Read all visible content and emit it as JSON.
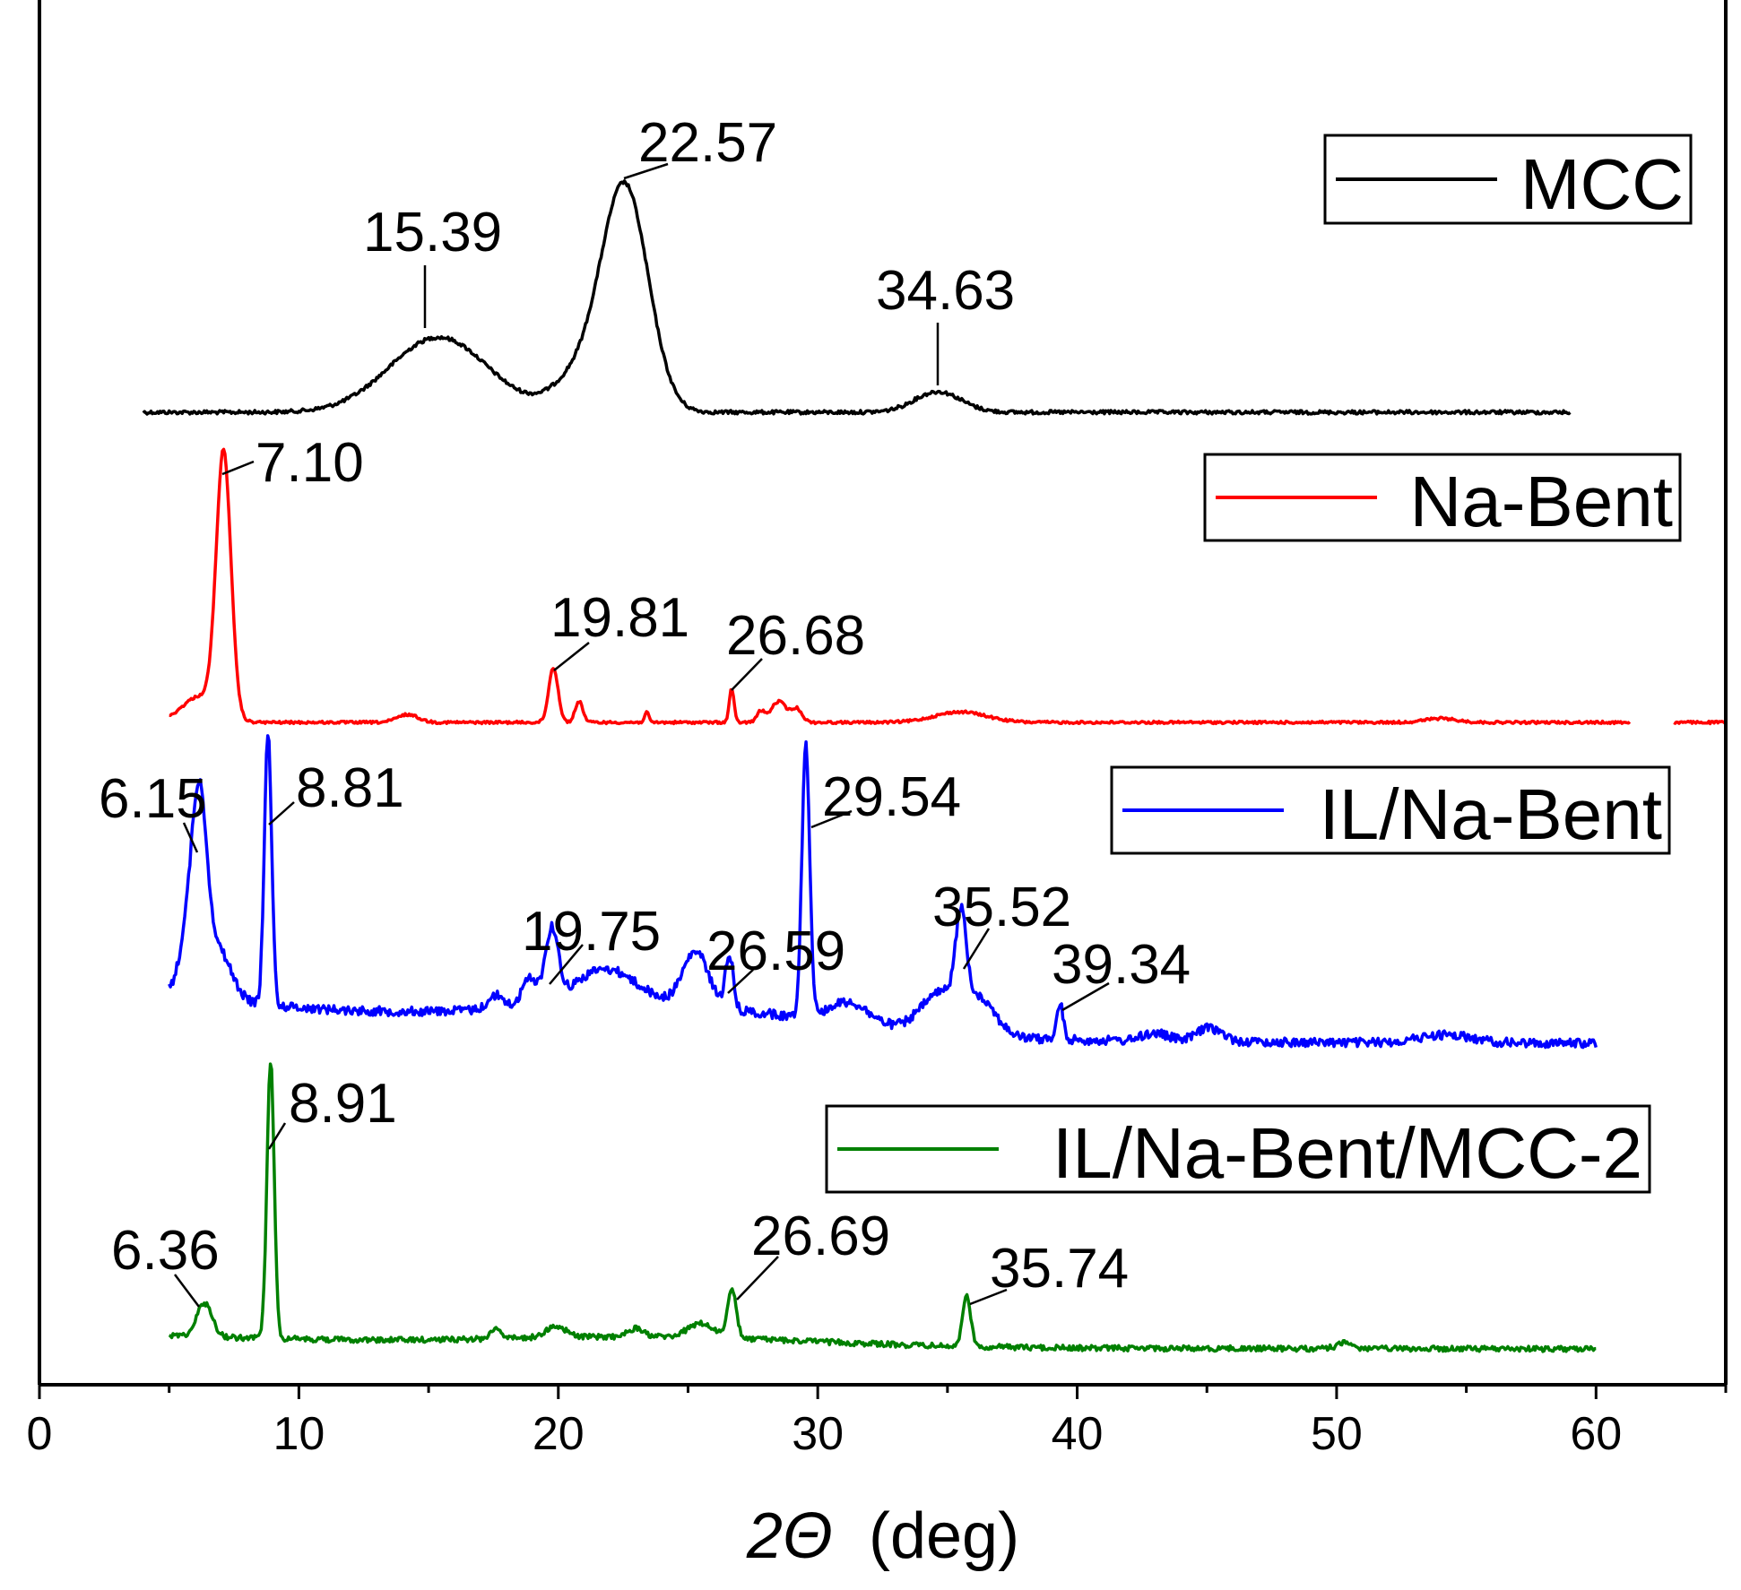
{
  "chart_data": {
    "type": "line",
    "title": "",
    "xlabel": "2Θ (deg)",
    "xlabel_parts": {
      "symbol": "2Θ",
      "unit": "(deg)"
    },
    "ylabel": "",
    "xlim": [
      0,
      65
    ],
    "x_ticks": [
      0,
      10,
      20,
      30,
      40,
      50,
      60
    ],
    "x_tick_labels": [
      "0",
      "10",
      "20",
      "30",
      "40",
      "50",
      "60"
    ],
    "y_ticks_shown": false,
    "grid": false,
    "legend_placement": "right, next to each trace",
    "series": [
      {
        "name": "MCC",
        "color": "#000000",
        "x_range": [
          4,
          59
        ],
        "baseline": 0.0,
        "peaks": [
          {
            "x": 15.39,
            "height": 0.31,
            "width": 1.9,
            "label": "15.39"
          },
          {
            "x": 22.57,
            "height": 0.92,
            "width": 0.9,
            "label": "22.57"
          },
          {
            "x": 34.63,
            "height": 0.085,
            "width": 0.9,
            "label": "34.63"
          }
        ],
        "extra_peaks": [
          {
            "x": 20.8,
            "height": 0.14,
            "width": 1.0
          }
        ]
      },
      {
        "name": "Na-Bent",
        "color": "#ff0000",
        "x_range": [
          5,
          61.3
        ],
        "extra_segments": [
          [
            63,
            65
          ]
        ],
        "baseline": 0.0,
        "peaks": [
          {
            "x": 7.1,
            "height": 1.0,
            "width": 0.28,
            "label": "7.10"
          },
          {
            "x": 19.81,
            "height": 0.21,
            "width": 0.18,
            "label": "19.81"
          },
          {
            "x": 26.68,
            "height": 0.13,
            "width": 0.09,
            "label": "26.68"
          }
        ],
        "extra_peaks": [
          {
            "x": 6.2,
            "height": 0.1,
            "width": 0.7
          },
          {
            "x": 14.2,
            "height": 0.03,
            "width": 0.4
          },
          {
            "x": 20.8,
            "height": 0.08,
            "width": 0.15
          },
          {
            "x": 23.4,
            "height": 0.04,
            "width": 0.08
          },
          {
            "x": 27.8,
            "height": 0.04,
            "width": 0.15
          },
          {
            "x": 28.5,
            "height": 0.08,
            "width": 0.3
          },
          {
            "x": 29.2,
            "height": 0.05,
            "width": 0.2
          },
          {
            "x": 35.5,
            "height": 0.04,
            "width": 1.0
          },
          {
            "x": 54.0,
            "height": 0.015,
            "width": 0.6
          }
        ]
      },
      {
        "name": "IL/Na-Bent",
        "color": "#0000ff",
        "x_range": [
          5,
          60
        ],
        "baseline": 0.0,
        "peaks": [
          {
            "x": 6.15,
            "height": 0.71,
            "width": 0.3,
            "label": "6.15"
          },
          {
            "x": 8.81,
            "height": 1.0,
            "width": 0.14,
            "label": "8.81"
          },
          {
            "x": 19.75,
            "height": 0.26,
            "width": 0.25,
            "label": "19.75"
          },
          {
            "x": 26.59,
            "height": 0.2,
            "width": 0.15,
            "label": "26.59"
          },
          {
            "x": 29.54,
            "height": 1.0,
            "width": 0.15,
            "label": "29.54"
          },
          {
            "x": 35.52,
            "height": 0.32,
            "width": 0.2,
            "label": "35.52"
          },
          {
            "x": 39.34,
            "height": 0.13,
            "width": 0.12,
            "label": "39.34"
          }
        ],
        "extra_peaks": [
          {
            "x": 5.6,
            "height": 0.15,
            "width": 0.3
          },
          {
            "x": 6.9,
            "height": 0.18,
            "width": 0.5
          },
          {
            "x": 17.6,
            "height": 0.05,
            "width": 0.3
          },
          {
            "x": 18.9,
            "height": 0.1,
            "width": 0.3
          },
          {
            "x": 21.8,
            "height": 0.13,
            "width": 1.2
          },
          {
            "x": 25.3,
            "height": 0.2,
            "width": 0.5
          },
          {
            "x": 31.2,
            "height": 0.08,
            "width": 0.8
          },
          {
            "x": 34.8,
            "height": 0.15,
            "width": 0.8
          },
          {
            "x": 36.3,
            "height": 0.12,
            "width": 0.6
          },
          {
            "x": 43.0,
            "height": 0.03,
            "width": 0.5
          },
          {
            "x": 45.1,
            "height": 0.05,
            "width": 0.5
          },
          {
            "x": 54.2,
            "height": 0.03,
            "width": 1.0
          }
        ]
      },
      {
        "name": "IL/Na-Bent/MCC-2",
        "color": "#008000",
        "x_range": [
          5,
          60
        ],
        "baseline": 0.0,
        "peaks": [
          {
            "x": 6.36,
            "height": 0.12,
            "width": 0.3,
            "label": "6.36"
          },
          {
            "x": 8.91,
            "height": 1.0,
            "width": 0.14,
            "label": "8.91"
          },
          {
            "x": 26.69,
            "height": 0.17,
            "width": 0.17,
            "label": "26.69"
          },
          {
            "x": 35.74,
            "height": 0.19,
            "width": 0.15,
            "label": "35.74"
          }
        ],
        "extra_peaks": [
          {
            "x": 17.6,
            "height": 0.04,
            "width": 0.2
          },
          {
            "x": 19.9,
            "height": 0.04,
            "width": 0.4
          },
          {
            "x": 23.0,
            "height": 0.03,
            "width": 0.3
          },
          {
            "x": 25.5,
            "height": 0.05,
            "width": 0.5
          },
          {
            "x": 50.3,
            "height": 0.02,
            "width": 0.3
          }
        ]
      }
    ]
  }
}
